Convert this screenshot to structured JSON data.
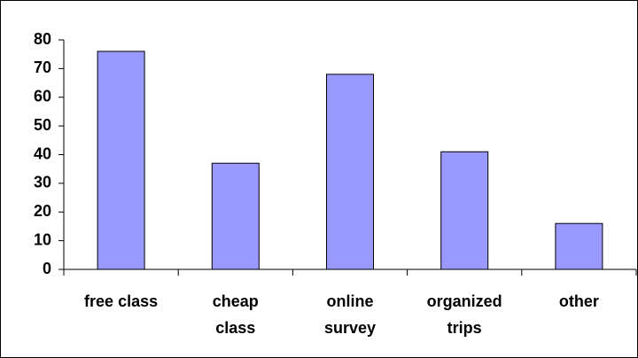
{
  "chart_data": {
    "type": "bar",
    "categories": [
      "free class",
      "cheap class",
      "online survey",
      "organized trips",
      "other"
    ],
    "values": [
      76,
      37,
      68,
      41,
      16
    ],
    "color": "#9999ff",
    "ylim": [
      0,
      80
    ],
    "yticks": [
      0,
      10,
      20,
      30,
      40,
      50,
      60,
      70,
      80
    ],
    "grid": false
  }
}
